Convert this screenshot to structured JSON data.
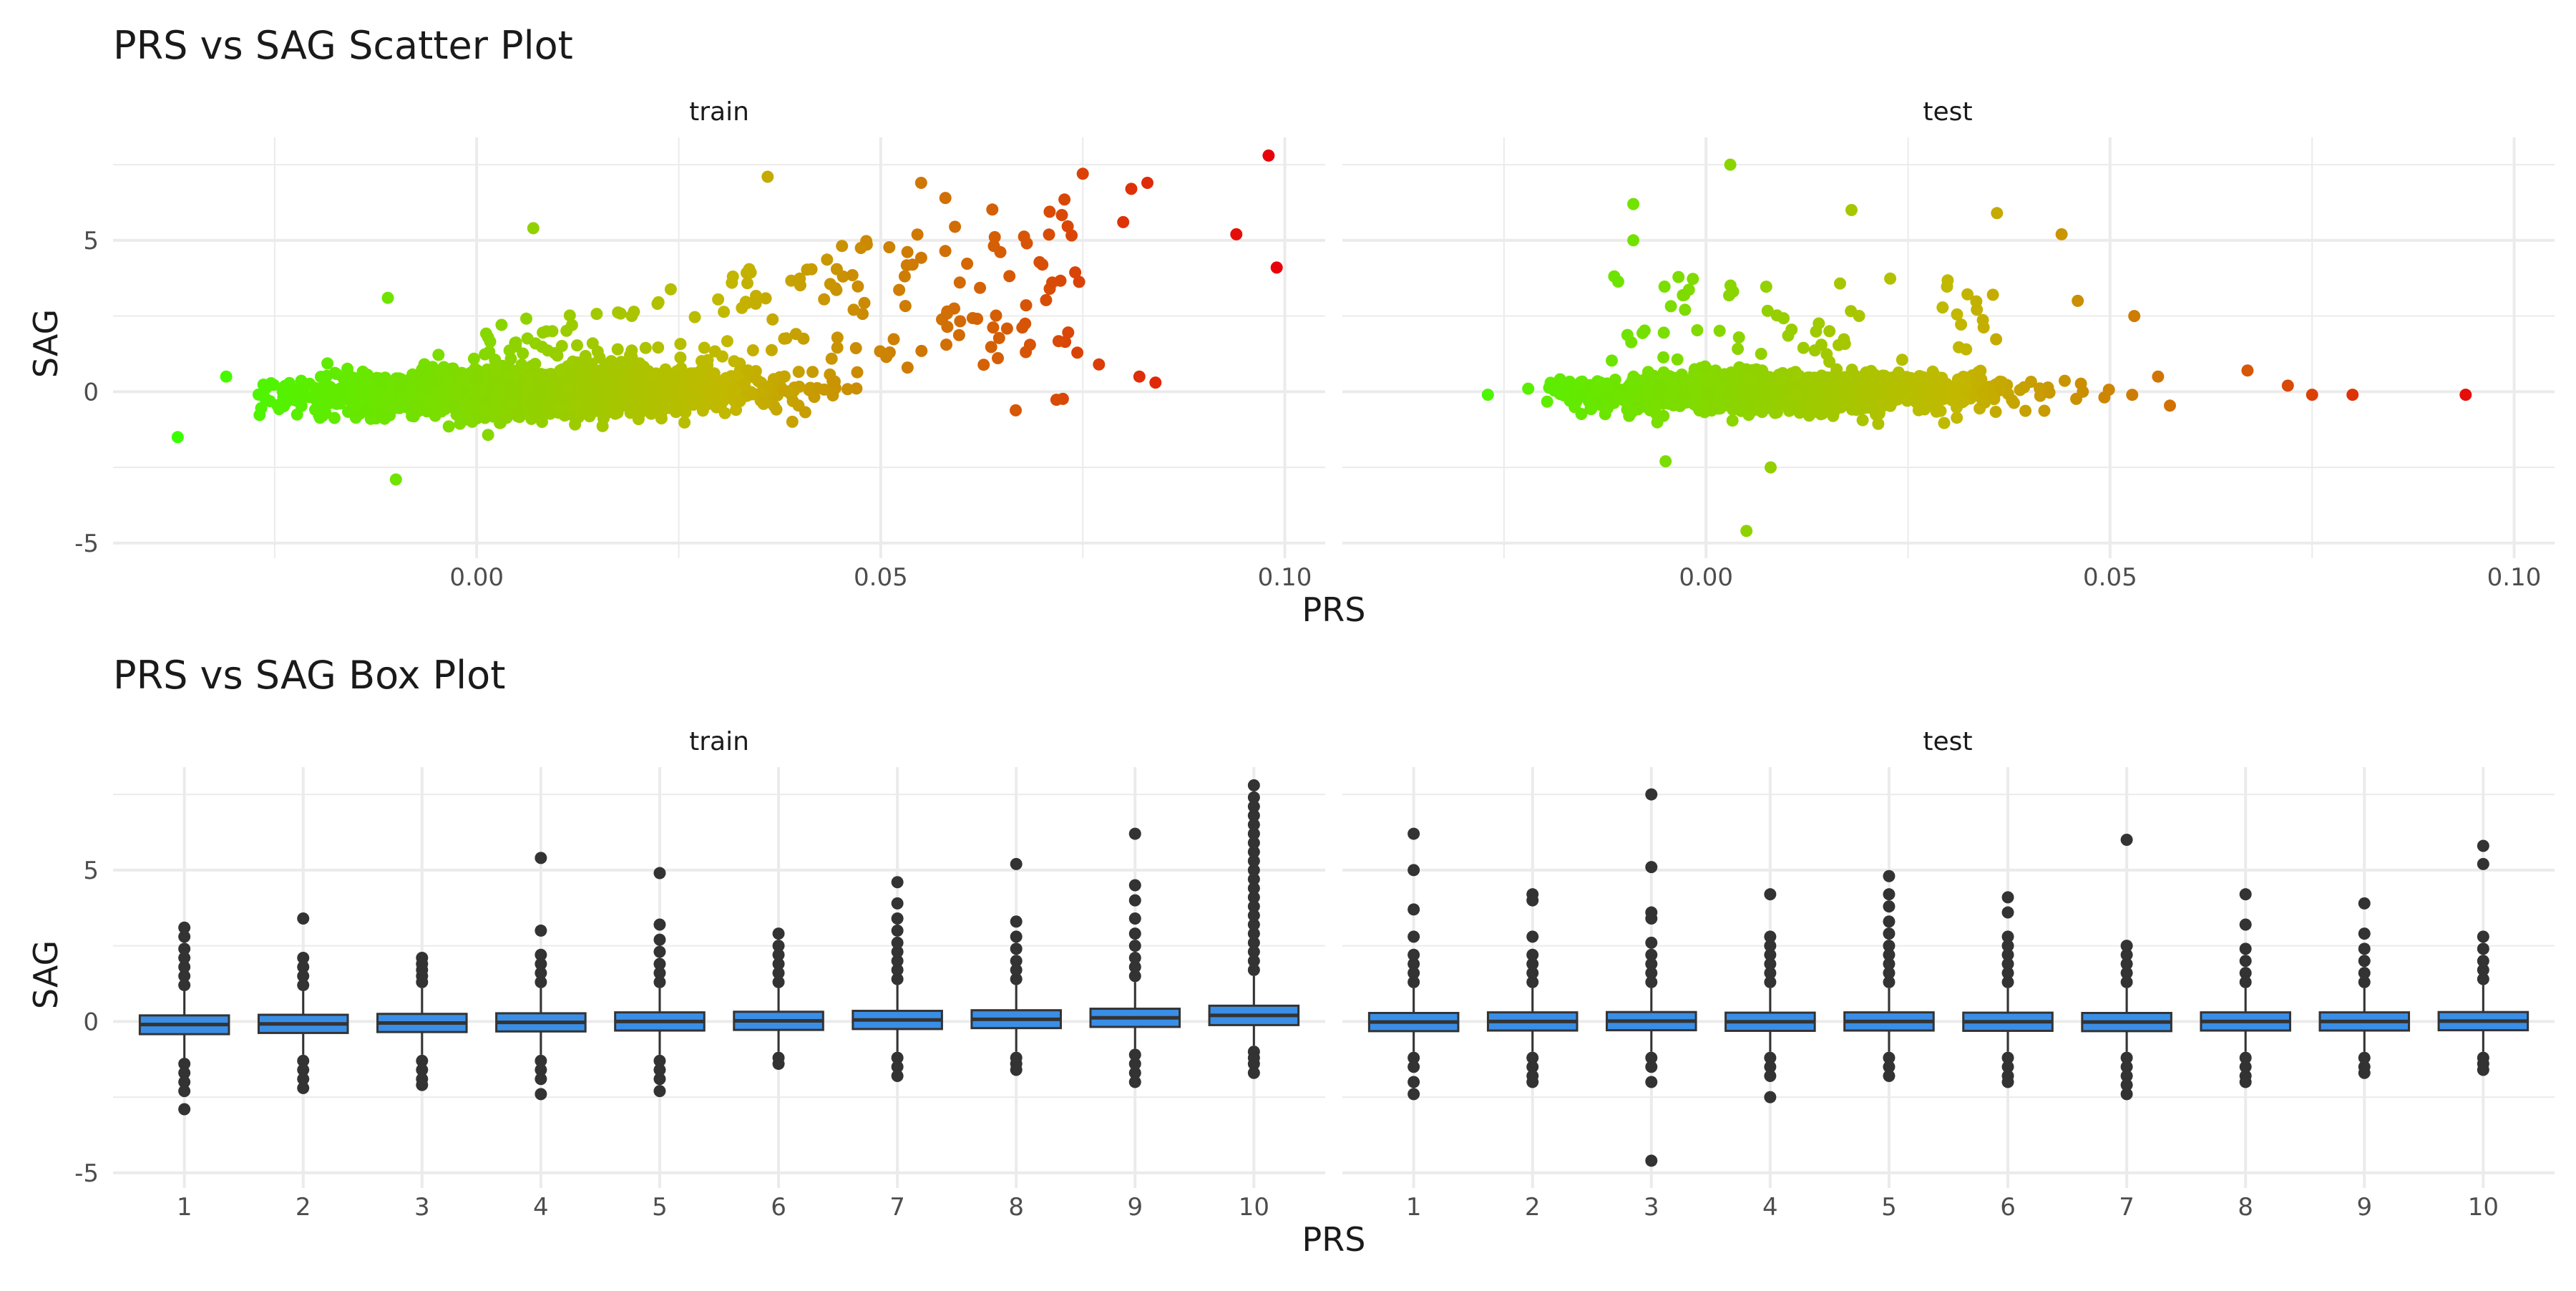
{
  "figure": {
    "colors": {
      "grid": "#ebebeb",
      "text": "#1a1a1a",
      "tick_text": "#4d4d4d",
      "box_fill": "#3a8ee6",
      "box_line": "#333333",
      "outlier": "#333333",
      "gradient_low": "#3aff00",
      "gradient_mid": "#c2b800",
      "gradient_high": "#e8000b"
    }
  },
  "chart_data": [
    {
      "type": "scatter",
      "title": "PRS vs SAG Scatter Plot",
      "xlabel": "PRS",
      "ylabel": "SAG",
      "xlim": [
        -0.045,
        0.105
      ],
      "ylim": [
        -5.5,
        8.4
      ],
      "x_ticks": [
        0.0,
        0.05,
        0.1
      ],
      "x_tick_labels": [
        "0.00",
        "0.05",
        "0.10"
      ],
      "y_ticks": [
        -5,
        0,
        5
      ],
      "y_tick_labels": [
        "-5",
        "0",
        "5"
      ],
      "color_by": "PRS",
      "grid": true,
      "legend": "none",
      "panels": [
        {
          "name": "train",
          "notable_points": [
            [
              -0.037,
              -1.5
            ],
            [
              -0.031,
              0.5
            ],
            [
              -0.01,
              -2.9
            ],
            [
              -0.011,
              3.1
            ],
            [
              0.007,
              5.4
            ],
            [
              0.036,
              7.1
            ],
            [
              0.055,
              6.9
            ],
            [
              0.058,
              6.4
            ],
            [
              0.075,
              7.2
            ],
            [
              0.081,
              6.7
            ],
            [
              0.083,
              6.9
            ],
            [
              0.08,
              5.6
            ],
            [
              0.07,
              4.2
            ],
            [
              0.094,
              5.2
            ],
            [
              0.098,
              7.8
            ],
            [
              0.099,
              4.1
            ],
            [
              0.082,
              0.5
            ],
            [
              0.084,
              0.3
            ],
            [
              0.077,
              0.9
            ]
          ],
          "cluster": {
            "x_range": [
              -0.028,
              0.078
            ],
            "peak_x": 0.008,
            "spread_y_at_peak": 1.2
          }
        },
        {
          "name": "test",
          "notable_points": [
            [
              -0.027,
              -0.1
            ],
            [
              -0.022,
              0.1
            ],
            [
              -0.009,
              6.2
            ],
            [
              -0.009,
              5.0
            ],
            [
              0.003,
              7.5
            ],
            [
              0.005,
              -4.6
            ],
            [
              0.018,
              6.0
            ],
            [
              0.036,
              5.9
            ],
            [
              0.044,
              5.2
            ],
            [
              0.046,
              3.0
            ],
            [
              0.053,
              2.5
            ],
            [
              0.067,
              0.7
            ],
            [
              0.072,
              0.2
            ],
            [
              0.075,
              -0.1
            ],
            [
              0.08,
              -0.1
            ],
            [
              0.094,
              -0.1
            ],
            [
              0.008,
              -2.5
            ],
            [
              -0.005,
              -2.3
            ]
          ],
          "cluster": {
            "x_range": [
              -0.02,
              0.06
            ],
            "peak_x": 0.008,
            "spread_y_at_peak": 1.1
          }
        }
      ]
    },
    {
      "type": "box",
      "title": "PRS vs SAG Box Plot",
      "xlabel": "PRS",
      "ylabel": "SAG",
      "categories": [
        "1",
        "2",
        "3",
        "4",
        "5",
        "6",
        "7",
        "8",
        "9",
        "10"
      ],
      "ylim": [
        -5.5,
        8.4
      ],
      "y_ticks": [
        -5,
        0,
        5
      ],
      "y_tick_labels": [
        "-5",
        "0",
        "5"
      ],
      "grid": true,
      "panels": [
        {
          "name": "train",
          "boxes": [
            {
              "q1": -0.42,
              "median": -0.1,
              "q3": 0.2,
              "whisker_low": -1.2,
              "whisker_high": 1.0,
              "outliers_high": [
                1.2,
                1.5,
                1.8,
                2.1,
                2.4,
                2.8,
                3.1
              ],
              "outliers_low": [
                -1.4,
                -1.7,
                -2.0,
                -2.3,
                -2.9
              ]
            },
            {
              "q1": -0.38,
              "median": -0.08,
              "q3": 0.22,
              "whisker_low": -1.1,
              "whisker_high": 1.0,
              "outliers_high": [
                1.2,
                1.5,
                1.8,
                2.1,
                3.4
              ],
              "outliers_low": [
                -1.3,
                -1.6,
                -1.9,
                -2.2
              ]
            },
            {
              "q1": -0.35,
              "median": -0.05,
              "q3": 0.25,
              "whisker_low": -1.1,
              "whisker_high": 1.1,
              "outliers_high": [
                1.3,
                1.5,
                1.7,
                1.9,
                2.1
              ],
              "outliers_low": [
                -1.3,
                -1.6,
                -1.9,
                -2.1
              ]
            },
            {
              "q1": -0.33,
              "median": -0.03,
              "q3": 0.27,
              "whisker_low": -1.1,
              "whisker_high": 1.1,
              "outliers_high": [
                1.3,
                1.6,
                1.9,
                2.2,
                3.0,
                5.4
              ],
              "outliers_low": [
                -1.3,
                -1.6,
                -1.9,
                -2.4
              ]
            },
            {
              "q1": -0.3,
              "median": 0.0,
              "q3": 0.3,
              "whisker_low": -1.1,
              "whisker_high": 1.1,
              "outliers_high": [
                1.3,
                1.6,
                1.9,
                2.3,
                2.7,
                3.2,
                4.9
              ],
              "outliers_low": [
                -1.3,
                -1.6,
                -1.9,
                -2.3
              ]
            },
            {
              "q1": -0.28,
              "median": 0.02,
              "q3": 0.32,
              "whisker_low": -1.0,
              "whisker_high": 1.1,
              "outliers_high": [
                1.3,
                1.6,
                1.9,
                2.2,
                2.5,
                2.9
              ],
              "outliers_low": [
                -1.2,
                -1.4
              ]
            },
            {
              "q1": -0.25,
              "median": 0.05,
              "q3": 0.35,
              "whisker_low": -1.0,
              "whisker_high": 1.2,
              "outliers_high": [
                1.4,
                1.7,
                2.0,
                2.3,
                2.6,
                3.0,
                3.4,
                3.9,
                4.6
              ],
              "outliers_low": [
                -1.2,
                -1.5,
                -1.8
              ]
            },
            {
              "q1": -0.22,
              "median": 0.07,
              "q3": 0.37,
              "whisker_low": -1.0,
              "whisker_high": 1.2,
              "outliers_high": [
                1.4,
                1.7,
                2.0,
                2.4,
                2.8,
                3.3,
                5.2
              ],
              "outliers_low": [
                -1.2,
                -1.4,
                -1.6
              ]
            },
            {
              "q1": -0.18,
              "median": 0.12,
              "q3": 0.42,
              "whisker_low": -0.9,
              "whisker_high": 1.3,
              "outliers_high": [
                1.5,
                1.8,
                2.1,
                2.5,
                2.9,
                3.4,
                4.0,
                4.5,
                6.2
              ],
              "outliers_low": [
                -1.1,
                -1.4,
                -1.7,
                -2.0
              ]
            },
            {
              "q1": -0.12,
              "median": 0.2,
              "q3": 0.52,
              "whisker_low": -0.8,
              "whisker_high": 1.5,
              "outliers_high": [
                1.7,
                2.0,
                2.3,
                2.6,
                2.9,
                3.2,
                3.5,
                3.8,
                4.1,
                4.4,
                4.7,
                5.0,
                5.3,
                5.6,
                5.9,
                6.2,
                6.5,
                6.8,
                7.1,
                7.4,
                7.8
              ],
              "outliers_low": [
                -1.0,
                -1.2,
                -1.4,
                -1.7
              ]
            }
          ]
        },
        {
          "name": "test",
          "boxes": [
            {
              "q1": -0.32,
              "median": -0.02,
              "q3": 0.28,
              "whisker_low": -1.0,
              "whisker_high": 1.1,
              "outliers_high": [
                1.3,
                1.6,
                1.9,
                2.2,
                2.8,
                3.7,
                5.0,
                6.2
              ],
              "outliers_low": [
                -1.2,
                -1.5,
                -2.0,
                -2.4
              ]
            },
            {
              "q1": -0.3,
              "median": 0.0,
              "q3": 0.3,
              "whisker_low": -1.0,
              "whisker_high": 1.1,
              "outliers_high": [
                1.3,
                1.6,
                1.9,
                2.2,
                2.8,
                4.0,
                4.2
              ],
              "outliers_low": [
                -1.2,
                -1.5,
                -1.8,
                -2.0
              ]
            },
            {
              "q1": -0.29,
              "median": 0.01,
              "q3": 0.31,
              "whisker_low": -1.0,
              "whisker_high": 1.1,
              "outliers_high": [
                1.3,
                1.6,
                1.9,
                2.2,
                2.6,
                3.4,
                3.6,
                5.1,
                7.5
              ],
              "outliers_low": [
                -1.2,
                -1.5,
                -2.0,
                -4.6
              ]
            },
            {
              "q1": -0.31,
              "median": -0.01,
              "q3": 0.29,
              "whisker_low": -1.0,
              "whisker_high": 1.1,
              "outliers_high": [
                1.3,
                1.6,
                1.9,
                2.2,
                2.5,
                2.8,
                4.2
              ],
              "outliers_low": [
                -1.2,
                -1.5,
                -1.8,
                -2.5
              ]
            },
            {
              "q1": -0.3,
              "median": 0.0,
              "q3": 0.3,
              "whisker_low": -1.0,
              "whisker_high": 1.1,
              "outliers_high": [
                1.3,
                1.6,
                1.9,
                2.2,
                2.5,
                2.9,
                3.3,
                3.8,
                4.2,
                4.8
              ],
              "outliers_low": [
                -1.2,
                -1.5,
                -1.8
              ]
            },
            {
              "q1": -0.31,
              "median": -0.01,
              "q3": 0.29,
              "whisker_low": -1.0,
              "whisker_high": 1.1,
              "outliers_high": [
                1.3,
                1.6,
                1.9,
                2.2,
                2.5,
                2.8,
                3.6,
                4.1
              ],
              "outliers_low": [
                -1.2,
                -1.5,
                -1.8,
                -2.0
              ]
            },
            {
              "q1": -0.32,
              "median": -0.02,
              "q3": 0.28,
              "whisker_low": -1.0,
              "whisker_high": 1.1,
              "outliers_high": [
                1.3,
                1.6,
                1.9,
                2.2,
                2.5,
                6.0
              ],
              "outliers_low": [
                -1.2,
                -1.5,
                -1.8,
                -2.1,
                -2.4
              ]
            },
            {
              "q1": -0.3,
              "median": 0.0,
              "q3": 0.3,
              "whisker_low": -1.0,
              "whisker_high": 1.1,
              "outliers_high": [
                1.3,
                1.6,
                2.0,
                2.4,
                3.2,
                4.2
              ],
              "outliers_low": [
                -1.2,
                -1.5,
                -1.8,
                -2.0
              ]
            },
            {
              "q1": -0.3,
              "median": 0.0,
              "q3": 0.3,
              "whisker_low": -1.0,
              "whisker_high": 1.1,
              "outliers_high": [
                1.3,
                1.6,
                2.0,
                2.4,
                2.9,
                3.9
              ],
              "outliers_low": [
                -1.2,
                -1.5,
                -1.7
              ]
            },
            {
              "q1": -0.29,
              "median": 0.01,
              "q3": 0.31,
              "whisker_low": -1.0,
              "whisker_high": 1.2,
              "outliers_high": [
                1.4,
                1.7,
                2.0,
                2.4,
                2.8,
                5.2,
                5.8
              ],
              "outliers_low": [
                -1.2,
                -1.4,
                -1.6
              ]
            }
          ]
        }
      ]
    }
  ]
}
